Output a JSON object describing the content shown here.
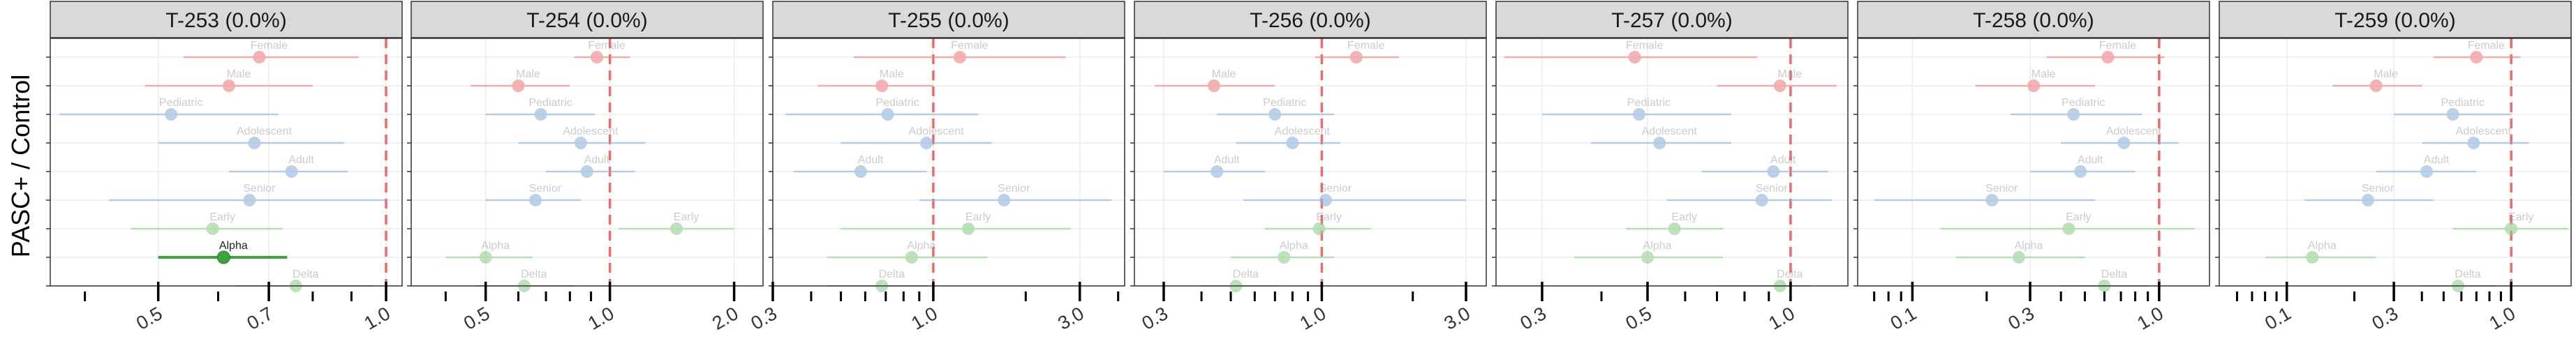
{
  "chart_data": {
    "type": "forest",
    "ylabel": "PASC+ / Control",
    "reference_x": 1.0,
    "grid": true,
    "legend": "none",
    "x_scale": "log",
    "colors": {
      "sex": "#f08080",
      "age": "#8fb4dc",
      "variant": "#8fd08f",
      "highlight": "#3aa63a",
      "reference": "#f06a6a"
    },
    "panels": [
      {
        "title": "T-253 (0.0%)",
        "xlim": [
          0.36,
          1.05
        ],
        "xticks": [
          0.5,
          0.7,
          1.0
        ],
        "xtick_labels": [
          "0.5",
          "0.7",
          "1.0"
        ],
        "rows": [
          {
            "label": "Female",
            "group": "sex",
            "est": 0.68,
            "lo": 0.54,
            "hi": 0.92
          },
          {
            "label": "Male",
            "group": "sex",
            "est": 0.62,
            "lo": 0.48,
            "hi": 0.8
          },
          {
            "label": "Pediatric",
            "group": "age",
            "est": 0.52,
            "lo": 0.37,
            "hi": 0.72
          },
          {
            "label": "Adolescent",
            "group": "age",
            "est": 0.67,
            "lo": 0.5,
            "hi": 0.88
          },
          {
            "label": "Adult",
            "group": "age",
            "est": 0.75,
            "lo": 0.62,
            "hi": 0.89
          },
          {
            "label": "Senior",
            "group": "age",
            "est": 0.66,
            "lo": 0.43,
            "hi": 1.0
          },
          {
            "label": "Early",
            "group": "variant",
            "est": 0.59,
            "lo": 0.46,
            "hi": 0.73
          },
          {
            "label": "Alpha",
            "group": "variant",
            "est": 0.61,
            "lo": 0.5,
            "hi": 0.74,
            "highlight": true
          },
          {
            "label": "Delta",
            "group": "variant",
            "est": 0.76,
            "lo": 0.63,
            "hi": 0.96
          }
        ]
      },
      {
        "title": "T-254 (0.0%)",
        "xlim": [
          0.33,
          2.35
        ],
        "xticks": [
          0.5,
          1.0,
          2.0
        ],
        "xtick_labels": [
          "0.5",
          "1.0",
          "2.0"
        ],
        "rows": [
          {
            "label": "Female",
            "group": "sex",
            "est": 0.93,
            "lo": 0.82,
            "hi": 1.12
          },
          {
            "label": "Male",
            "group": "sex",
            "est": 0.6,
            "lo": 0.46,
            "hi": 0.8
          },
          {
            "label": "Pediatric",
            "group": "age",
            "est": 0.68,
            "lo": 0.5,
            "hi": 0.92
          },
          {
            "label": "Adolescent",
            "group": "age",
            "est": 0.85,
            "lo": 0.6,
            "hi": 1.22
          },
          {
            "label": "Adult",
            "group": "age",
            "est": 0.88,
            "lo": 0.7,
            "hi": 1.15
          },
          {
            "label": "Senior",
            "group": "age",
            "est": 0.66,
            "lo": 0.5,
            "hi": 0.85
          },
          {
            "label": "Early",
            "group": "variant",
            "est": 1.45,
            "lo": 1.05,
            "hi": 2.0
          },
          {
            "label": "Alpha",
            "group": "variant",
            "est": 0.5,
            "lo": 0.4,
            "hi": 0.65
          },
          {
            "label": "Delta",
            "group": "variant",
            "est": 0.62,
            "lo": 0.47,
            "hi": 0.82
          }
        ]
      },
      {
        "title": "T-255 (0.0%)",
        "xlim": [
          0.3,
          4.2
        ],
        "xticks": [
          0.3,
          1.0,
          3.0
        ],
        "xtick_labels": [
          "0.3",
          "1.0",
          "3.0"
        ],
        "rows": [
          {
            "label": "Female",
            "group": "sex",
            "est": 1.22,
            "lo": 0.55,
            "hi": 2.7
          },
          {
            "label": "Male",
            "group": "sex",
            "est": 0.68,
            "lo": 0.42,
            "hi": 1.0
          },
          {
            "label": "Pediatric",
            "group": "age",
            "est": 0.71,
            "lo": 0.33,
            "hi": 1.4
          },
          {
            "label": "Adolescent",
            "group": "age",
            "est": 0.95,
            "lo": 0.5,
            "hi": 1.55
          },
          {
            "label": "Adult",
            "group": "age",
            "est": 0.58,
            "lo": 0.35,
            "hi": 0.95
          },
          {
            "label": "Senior",
            "group": "age",
            "est": 1.7,
            "lo": 0.9,
            "hi": 3.8
          },
          {
            "label": "Early",
            "group": "variant",
            "est": 1.3,
            "lo": 0.5,
            "hi": 2.8
          },
          {
            "label": "Alpha",
            "group": "variant",
            "est": 0.85,
            "lo": 0.45,
            "hi": 1.5
          },
          {
            "label": "Delta",
            "group": "variant",
            "est": 0.68,
            "lo": 0.45,
            "hi": 0.95
          }
        ]
      },
      {
        "title": "T-256 (0.0%)",
        "xlim": [
          0.24,
          3.5
        ],
        "xticks": [
          0.3,
          1.0,
          3.0
        ],
        "xtick_labels": [
          "0.3",
          "1.0",
          "3.0"
        ],
        "rows": [
          {
            "label": "Female",
            "group": "sex",
            "est": 1.3,
            "lo": 0.95,
            "hi": 1.8
          },
          {
            "label": "Male",
            "group": "sex",
            "est": 0.44,
            "lo": 0.28,
            "hi": 0.7
          },
          {
            "label": "Pediatric",
            "group": "age",
            "est": 0.7,
            "lo": 0.45,
            "hi": 1.1
          },
          {
            "label": "Adolescent",
            "group": "age",
            "est": 0.8,
            "lo": 0.52,
            "hi": 1.15
          },
          {
            "label": "Adult",
            "group": "age",
            "est": 0.45,
            "lo": 0.3,
            "hi": 0.65
          },
          {
            "label": "Senior",
            "group": "age",
            "est": 1.03,
            "lo": 0.55,
            "hi": 3.0
          },
          {
            "label": "Early",
            "group": "variant",
            "est": 0.98,
            "lo": 0.65,
            "hi": 1.45
          },
          {
            "label": "Alpha",
            "group": "variant",
            "est": 0.75,
            "lo": 0.5,
            "hi": 1.1
          },
          {
            "label": "Delta",
            "group": "variant",
            "est": 0.52,
            "lo": 0.4,
            "hi": 0.72
          }
        ]
      },
      {
        "title": "T-257 (0.0%)",
        "xlim": [
          0.24,
          1.32
        ],
        "xticks": [
          0.3,
          0.5,
          1.0
        ],
        "xtick_labels": [
          "0.3",
          "0.5",
          "1.0"
        ],
        "rows": [
          {
            "label": "Female",
            "group": "sex",
            "est": 0.47,
            "lo": 0.25,
            "hi": 0.85
          },
          {
            "label": "Male",
            "group": "sex",
            "est": 0.95,
            "lo": 0.7,
            "hi": 1.25
          },
          {
            "label": "Pediatric",
            "group": "age",
            "est": 0.48,
            "lo": 0.3,
            "hi": 0.75
          },
          {
            "label": "Adolescent",
            "group": "age",
            "est": 0.53,
            "lo": 0.38,
            "hi": 0.75
          },
          {
            "label": "Adult",
            "group": "age",
            "est": 0.92,
            "lo": 0.65,
            "hi": 1.2
          },
          {
            "label": "Senior",
            "group": "age",
            "est": 0.87,
            "lo": 0.55,
            "hi": 1.22
          },
          {
            "label": "Early",
            "group": "variant",
            "est": 0.57,
            "lo": 0.45,
            "hi": 0.72
          },
          {
            "label": "Alpha",
            "group": "variant",
            "est": 0.5,
            "lo": 0.35,
            "hi": 0.72
          },
          {
            "label": "Delta",
            "group": "variant",
            "est": 0.95,
            "lo": 0.7,
            "hi": 1.1
          }
        ]
      },
      {
        "title": "T-258 (0.0%)",
        "xlim": [
          0.06,
          1.6
        ],
        "xticks": [
          0.1,
          0.3,
          1.0
        ],
        "xtick_labels": [
          "0.1",
          "0.3",
          "1.0"
        ],
        "rows": [
          {
            "label": "Female",
            "group": "sex",
            "est": 0.62,
            "lo": 0.35,
            "hi": 1.05
          },
          {
            "label": "Male",
            "group": "sex",
            "est": 0.31,
            "lo": 0.18,
            "hi": 0.55
          },
          {
            "label": "Pediatric",
            "group": "age",
            "est": 0.45,
            "lo": 0.25,
            "hi": 0.85
          },
          {
            "label": "Adolescent",
            "group": "age",
            "est": 0.72,
            "lo": 0.4,
            "hi": 1.2
          },
          {
            "label": "Adult",
            "group": "age",
            "est": 0.48,
            "lo": 0.3,
            "hi": 0.8
          },
          {
            "label": "Senior",
            "group": "age",
            "est": 0.21,
            "lo": 0.07,
            "hi": 0.55
          },
          {
            "label": "Early",
            "group": "variant",
            "est": 0.43,
            "lo": 0.13,
            "hi": 1.4
          },
          {
            "label": "Alpha",
            "group": "variant",
            "est": 0.27,
            "lo": 0.15,
            "hi": 0.5
          },
          {
            "label": "Delta",
            "group": "variant",
            "est": 0.6,
            "lo": 0.4,
            "hi": 0.9
          }
        ]
      },
      {
        "title": "T-259 (0.0%)",
        "xlim": [
          0.05,
          1.85
        ],
        "xticks": [
          0.1,
          0.3,
          1.0
        ],
        "xtick_labels": [
          "0.1",
          "0.3",
          "1.0"
        ],
        "rows": [
          {
            "label": "Female",
            "group": "sex",
            "est": 0.7,
            "lo": 0.45,
            "hi": 1.1
          },
          {
            "label": "Male",
            "group": "sex",
            "est": 0.25,
            "lo": 0.16,
            "hi": 0.4
          },
          {
            "label": "Pediatric",
            "group": "age",
            "est": 0.55,
            "lo": 0.3,
            "hi": 1.0
          },
          {
            "label": "Adolescent",
            "group": "age",
            "est": 0.68,
            "lo": 0.4,
            "hi": 1.2
          },
          {
            "label": "Adult",
            "group": "age",
            "est": 0.42,
            "lo": 0.25,
            "hi": 0.7
          },
          {
            "label": "Senior",
            "group": "age",
            "est": 0.23,
            "lo": 0.12,
            "hi": 0.45
          },
          {
            "label": "Early",
            "group": "variant",
            "est": 1.0,
            "lo": 0.55,
            "hi": 1.8
          },
          {
            "label": "Alpha",
            "group": "variant",
            "est": 0.13,
            "lo": 0.08,
            "hi": 0.25
          },
          {
            "label": "Delta",
            "group": "variant",
            "est": 0.58,
            "lo": 0.4,
            "hi": 0.85
          }
        ]
      }
    ]
  }
}
